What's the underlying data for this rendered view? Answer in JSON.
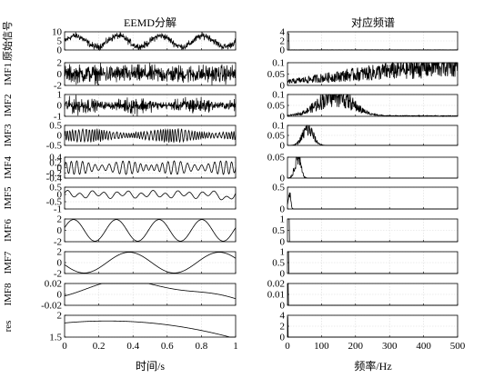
{
  "chart_data": [
    {
      "type": "line",
      "title": "EEMD分解",
      "xlabel": "时间/s",
      "xlim": [
        0,
        1
      ],
      "x_ticks": [
        "0",
        "0.2",
        "0.4",
        "0.6",
        "0.8",
        "1"
      ],
      "grid": true,
      "panels": [
        {
          "ylabel": "原始信号",
          "ylim": [
            0,
            10
          ],
          "y_ticks": [
            "0",
            "5",
            "10"
          ]
        },
        {
          "ylabel": "IMF1",
          "ylim": [
            -2,
            2
          ],
          "y_ticks": [
            "-2",
            "0",
            "2"
          ]
        },
        {
          "ylabel": "IMF2",
          "ylim": [
            -1,
            1
          ],
          "y_ticks": [
            "-1",
            "0",
            "1"
          ]
        },
        {
          "ylabel": "IMF3",
          "ylim": [
            -0.5,
            0.5
          ],
          "y_ticks": [
            "-0.5",
            "0",
            "0.5"
          ]
        },
        {
          "ylabel": "IMF4",
          "ylim": [
            -0.4,
            0.4
          ],
          "y_ticks": [
            "-0.4",
            "-0.2",
            "0",
            "0.2",
            "0.4"
          ]
        },
        {
          "ylabel": "IMF5",
          "ylim": [
            -1,
            0.5
          ],
          "y_ticks": [
            "-1",
            "-0.5",
            "0",
            "0.5"
          ]
        },
        {
          "ylabel": "IMF6",
          "ylim": [
            -2,
            2
          ],
          "y_ticks": [
            "-2",
            "0",
            "2"
          ]
        },
        {
          "ylabel": "IMF7",
          "ylim": [
            -2,
            2
          ],
          "y_ticks": [
            "-2",
            "0",
            "2"
          ]
        },
        {
          "ylabel": "IMF8",
          "ylim": [
            -0.02,
            0.02
          ],
          "y_ticks": [
            "-0.02",
            "0",
            "0.02"
          ]
        },
        {
          "ylabel": "res",
          "ylim": [
            1.5,
            2
          ],
          "y_ticks": [
            "1.5",
            "2"
          ]
        }
      ]
    },
    {
      "type": "line",
      "title": "对应频谱",
      "xlabel": "频率/Hz",
      "xlim": [
        0,
        500
      ],
      "x_ticks": [
        "0",
        "100",
        "200",
        "300",
        "400",
        "500"
      ],
      "grid": true,
      "panels": [
        {
          "ylim": [
            0,
            4
          ],
          "y_ticks": [
            "0",
            "2",
            "4"
          ]
        },
        {
          "ylim": [
            0,
            0.1
          ],
          "y_ticks": [
            "0",
            "0.05",
            "0.1"
          ]
        },
        {
          "ylim": [
            0,
            0.1
          ],
          "y_ticks": [
            "0",
            "0.05",
            "0.1"
          ]
        },
        {
          "ylim": [
            0,
            0.1
          ],
          "y_ticks": [
            "0",
            "0.05",
            "0.1"
          ]
        },
        {
          "ylim": [
            0,
            0.05
          ],
          "y_ticks": [
            "0",
            "0.05"
          ]
        },
        {
          "ylim": [
            0,
            0.5
          ],
          "y_ticks": [
            "0",
            "0.5"
          ]
        },
        {
          "ylim": [
            0,
            1
          ],
          "y_ticks": [
            "0",
            "0.5",
            "1"
          ]
        },
        {
          "ylim": [
            0,
            1
          ],
          "y_ticks": [
            "0",
            "0.5",
            "1"
          ]
        },
        {
          "ylim": [
            0,
            0.02
          ],
          "y_ticks": [
            "0",
            "0.01",
            "0.02"
          ]
        },
        {
          "ylim": [
            0,
            4
          ],
          "y_ticks": [
            "0",
            "2",
            "4"
          ]
        }
      ]
    }
  ]
}
